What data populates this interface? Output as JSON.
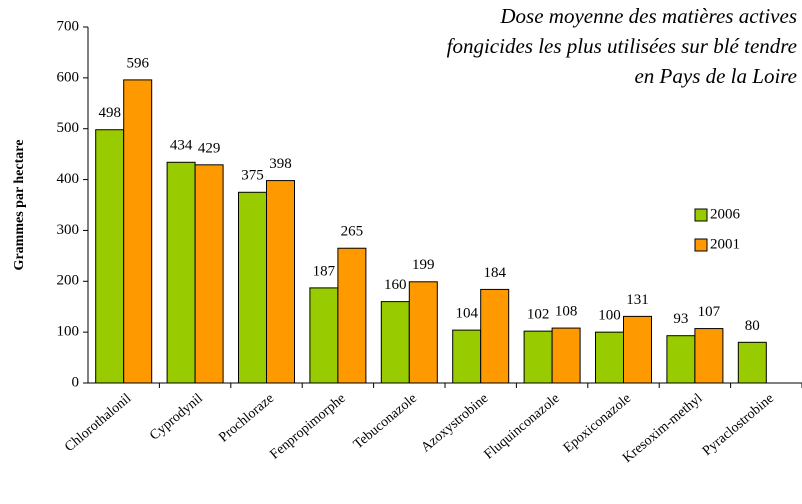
{
  "chart_data": {
    "type": "bar",
    "title": [
      "Dose moyenne des matières actives",
      "fongicides les plus utilisées sur blé tendre",
      "en Pays de la Loire"
    ],
    "y_label": "Grammes par hectare",
    "categories": [
      "Chlorothalonil",
      "Cyprodynil",
      "Prochloraze",
      "Fenpropimorphe",
      "Tebuconazole",
      "Azoxystrobine",
      "Fluquinconazole",
      "Epoxiconazole",
      "Kresoxim-methyl",
      "Pyraclostrobine"
    ],
    "series": [
      {
        "name": "2006",
        "color": "#99cc00",
        "values": [
          498,
          434,
          375,
          187,
          160,
          104,
          102,
          100,
          93,
          80
        ]
      },
      {
        "name": "2001",
        "color": "#ff9900",
        "values": [
          596,
          429,
          398,
          265,
          199,
          184,
          108,
          131,
          107,
          null
        ]
      }
    ],
    "ylim": [
      0,
      700
    ],
    "yticks": [
      0,
      100,
      200,
      300,
      400,
      500,
      600,
      700
    ],
    "legend": "right"
  }
}
